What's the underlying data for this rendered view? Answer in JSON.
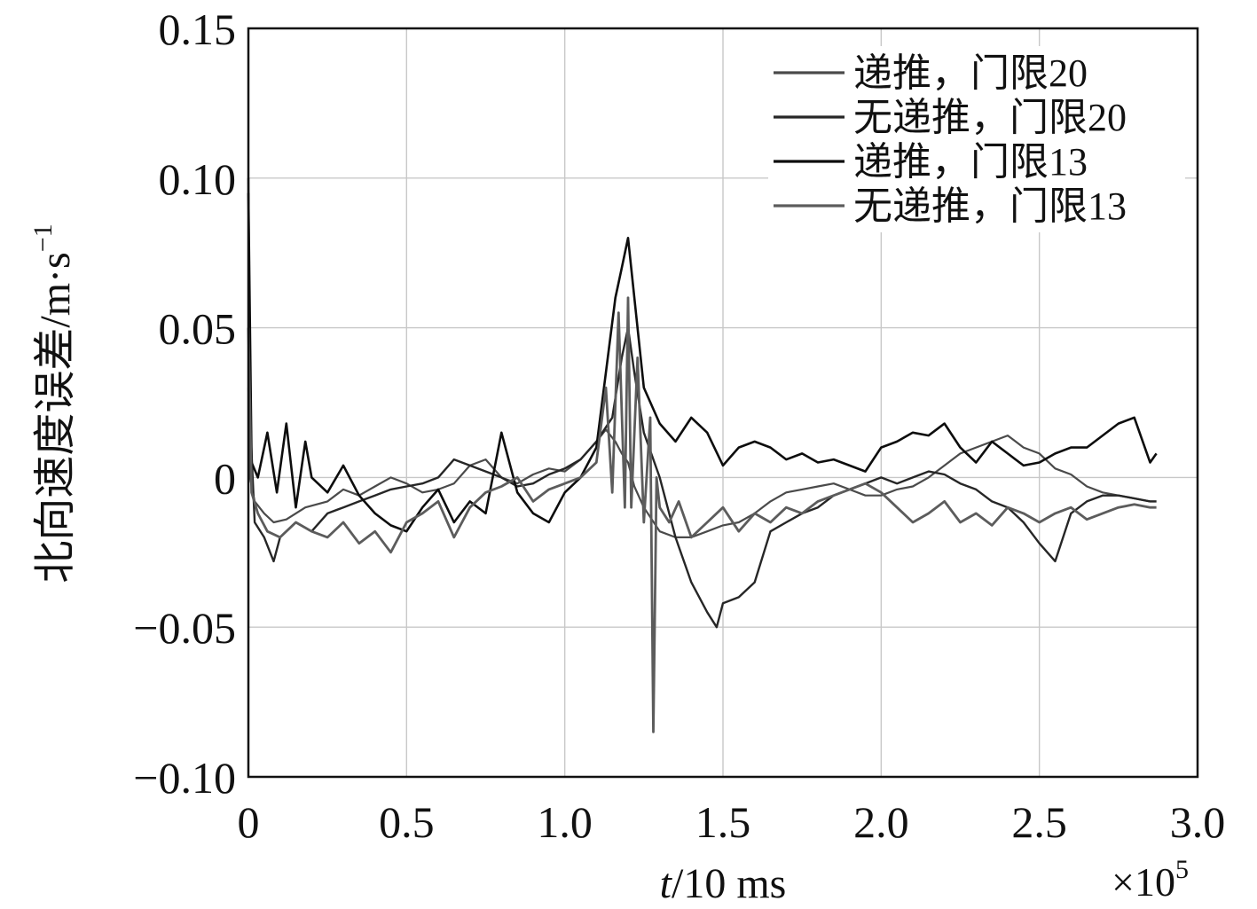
{
  "chart_data": {
    "type": "line",
    "title": "",
    "xlabel": {
      "var": "t",
      "unit": "/10 ms"
    },
    "ylabel": {
      "base": "北向速度误差/m·s",
      "sup": "−1"
    },
    "x_multiplier": {
      "base": "×10",
      "sup": "5"
    },
    "xlim": [
      0,
      3.0
    ],
    "ylim": [
      -0.1,
      0.15
    ],
    "x_ticks": [
      0,
      0.5,
      1.0,
      1.5,
      2.0,
      2.5,
      3.0
    ],
    "x_tick_labels": [
      "0",
      "0.5",
      "1.0",
      "1.5",
      "2.0",
      "2.5",
      "3.0"
    ],
    "y_ticks": [
      -0.1,
      -0.05,
      0,
      0.05,
      0.1,
      0.15
    ],
    "y_tick_labels": [
      "−0.10",
      "−0.05",
      "0",
      "0.05",
      "0.10",
      "0.15"
    ],
    "grid": true,
    "legend_position": "top-right",
    "series": [
      {
        "name": "递推，门限20",
        "color": "#4a4a4a",
        "width": 2.2,
        "x": [
          0,
          0.005,
          0.02,
          0.05,
          0.08,
          0.12,
          0.18,
          0.25,
          0.3,
          0.35,
          0.4,
          0.45,
          0.5,
          0.55,
          0.6,
          0.65,
          0.7,
          0.75,
          0.8,
          0.85,
          0.9,
          0.95,
          1.0,
          1.05,
          1.1,
          1.13,
          1.16,
          1.18,
          1.2,
          1.22,
          1.25,
          1.3,
          1.35,
          1.4,
          1.45,
          1.5,
          1.55,
          1.6,
          1.65,
          1.7,
          1.75,
          1.8,
          1.85,
          1.9,
          1.95,
          2.0,
          2.05,
          2.1,
          2.15,
          2.2,
          2.25,
          2.3,
          2.35,
          2.4,
          2.45,
          2.5,
          2.55,
          2.6,
          2.65,
          2.7,
          2.75,
          2.8,
          2.85,
          2.87
        ],
        "y": [
          0.03,
          0.0,
          -0.008,
          -0.012,
          -0.015,
          -0.014,
          -0.01,
          -0.008,
          -0.004,
          -0.006,
          -0.003,
          0.0,
          -0.002,
          -0.005,
          -0.004,
          -0.002,
          0.004,
          0.006,
          0.0,
          -0.002,
          0.001,
          0.003,
          0.002,
          0.006,
          0.012,
          0.016,
          0.012,
          0.008,
          0.005,
          -0.003,
          -0.01,
          -0.018,
          -0.02,
          -0.02,
          -0.018,
          -0.016,
          -0.015,
          -0.012,
          -0.008,
          -0.005,
          -0.004,
          -0.003,
          -0.002,
          -0.004,
          -0.006,
          -0.006,
          -0.004,
          -0.003,
          0.0,
          0.004,
          0.008,
          0.01,
          0.012,
          0.014,
          0.01,
          0.008,
          0.003,
          0.001,
          -0.003,
          -0.005,
          -0.006,
          -0.007,
          -0.008,
          -0.008
        ]
      },
      {
        "name": "无递推，门限20",
        "color": "#262626",
        "width": 2.4,
        "x": [
          0,
          0.005,
          0.02,
          0.05,
          0.08,
          0.1,
          0.15,
          0.2,
          0.25,
          0.3,
          0.35,
          0.4,
          0.45,
          0.5,
          0.55,
          0.6,
          0.65,
          0.7,
          0.75,
          0.8,
          0.85,
          0.9,
          0.95,
          1.0,
          1.05,
          1.1,
          1.15,
          1.18,
          1.2,
          1.22,
          1.25,
          1.3,
          1.35,
          1.4,
          1.45,
          1.48,
          1.5,
          1.55,
          1.6,
          1.65,
          1.7,
          1.75,
          1.8,
          1.85,
          1.9,
          1.95,
          2.0,
          2.05,
          2.1,
          2.15,
          2.2,
          2.25,
          2.3,
          2.35,
          2.4,
          2.45,
          2.5,
          2.55,
          2.6,
          2.65,
          2.7,
          2.75,
          2.8,
          2.85,
          2.87
        ],
        "y": [
          0.1,
          0.02,
          -0.015,
          -0.02,
          -0.028,
          -0.02,
          -0.015,
          -0.018,
          -0.012,
          -0.01,
          -0.008,
          -0.006,
          -0.004,
          -0.003,
          -0.002,
          0.0,
          0.006,
          0.004,
          0.002,
          0.0,
          -0.003,
          -0.002,
          0.001,
          0.003,
          0.006,
          0.012,
          0.02,
          0.04,
          0.05,
          0.035,
          0.015,
          0.0,
          -0.02,
          -0.035,
          -0.045,
          -0.05,
          -0.042,
          -0.04,
          -0.035,
          -0.018,
          -0.015,
          -0.012,
          -0.01,
          -0.006,
          -0.004,
          -0.002,
          0.0,
          -0.002,
          0.0,
          0.002,
          0.001,
          -0.002,
          -0.004,
          -0.008,
          -0.01,
          -0.015,
          -0.022,
          -0.028,
          -0.012,
          -0.008,
          -0.006,
          -0.006,
          -0.007,
          -0.008,
          -0.008
        ]
      },
      {
        "name": "递推，门限13",
        "color": "#0d0d0d",
        "width": 2.6,
        "x": [
          0,
          0.01,
          0.03,
          0.06,
          0.09,
          0.12,
          0.15,
          0.18,
          0.2,
          0.25,
          0.3,
          0.35,
          0.4,
          0.45,
          0.5,
          0.55,
          0.6,
          0.65,
          0.7,
          0.75,
          0.8,
          0.85,
          0.9,
          0.95,
          1.0,
          1.05,
          1.1,
          1.13,
          1.16,
          1.18,
          1.2,
          1.22,
          1.25,
          1.3,
          1.35,
          1.4,
          1.45,
          1.5,
          1.55,
          1.6,
          1.65,
          1.7,
          1.75,
          1.8,
          1.85,
          1.9,
          1.95,
          2.0,
          2.05,
          2.1,
          2.15,
          2.2,
          2.25,
          2.3,
          2.35,
          2.4,
          2.45,
          2.5,
          2.55,
          2.6,
          2.65,
          2.7,
          2.75,
          2.8,
          2.85,
          2.87
        ],
        "y": [
          0.095,
          0.005,
          0.0,
          0.015,
          -0.005,
          0.018,
          -0.01,
          0.012,
          0.0,
          -0.005,
          0.004,
          -0.006,
          -0.012,
          -0.016,
          -0.018,
          -0.01,
          -0.004,
          -0.015,
          -0.008,
          -0.012,
          0.015,
          -0.005,
          -0.012,
          -0.015,
          -0.005,
          0.0,
          0.01,
          0.035,
          0.06,
          0.07,
          0.08,
          0.06,
          0.03,
          0.018,
          0.012,
          0.02,
          0.015,
          0.004,
          0.01,
          0.012,
          0.01,
          0.006,
          0.008,
          0.005,
          0.006,
          0.004,
          0.002,
          0.01,
          0.012,
          0.015,
          0.014,
          0.018,
          0.01,
          0.005,
          0.012,
          0.008,
          0.004,
          0.005,
          0.008,
          0.01,
          0.01,
          0.014,
          0.018,
          0.02,
          0.005,
          0.008
        ]
      },
      {
        "name": "无递推，门限13",
        "color": "#5c5c5c",
        "width": 2.8,
        "x": [
          0,
          0.01,
          0.03,
          0.06,
          0.1,
          0.15,
          0.2,
          0.25,
          0.3,
          0.35,
          0.4,
          0.45,
          0.5,
          0.55,
          0.6,
          0.65,
          0.7,
          0.75,
          0.8,
          0.85,
          0.9,
          0.95,
          1.0,
          1.05,
          1.1,
          1.13,
          1.15,
          1.17,
          1.19,
          1.2,
          1.21,
          1.23,
          1.25,
          1.27,
          1.28,
          1.29,
          1.3,
          1.33,
          1.36,
          1.4,
          1.45,
          1.5,
          1.55,
          1.6,
          1.65,
          1.7,
          1.75,
          1.8,
          1.85,
          1.9,
          1.95,
          2.0,
          2.05,
          2.1,
          2.15,
          2.2,
          2.25,
          2.3,
          2.35,
          2.4,
          2.45,
          2.5,
          2.55,
          2.6,
          2.65,
          2.7,
          2.75,
          2.8,
          2.85,
          2.87
        ],
        "y": [
          0.05,
          -0.005,
          -0.012,
          -0.018,
          -0.02,
          -0.015,
          -0.018,
          -0.02,
          -0.015,
          -0.022,
          -0.018,
          -0.025,
          -0.015,
          -0.012,
          -0.008,
          -0.02,
          -0.01,
          -0.005,
          -0.003,
          0.0,
          -0.008,
          -0.004,
          -0.002,
          0.0,
          0.005,
          0.03,
          -0.005,
          0.055,
          -0.01,
          0.06,
          -0.01,
          0.04,
          -0.015,
          0.02,
          -0.085,
          0.0,
          -0.01,
          -0.015,
          -0.008,
          -0.02,
          -0.015,
          -0.01,
          -0.018,
          -0.012,
          -0.015,
          -0.01,
          -0.012,
          -0.008,
          -0.006,
          -0.004,
          -0.002,
          -0.005,
          -0.01,
          -0.015,
          -0.012,
          -0.008,
          -0.015,
          -0.012,
          -0.016,
          -0.01,
          -0.012,
          -0.015,
          -0.012,
          -0.01,
          -0.014,
          -0.012,
          -0.01,
          -0.009,
          -0.01,
          -0.01
        ]
      }
    ]
  }
}
